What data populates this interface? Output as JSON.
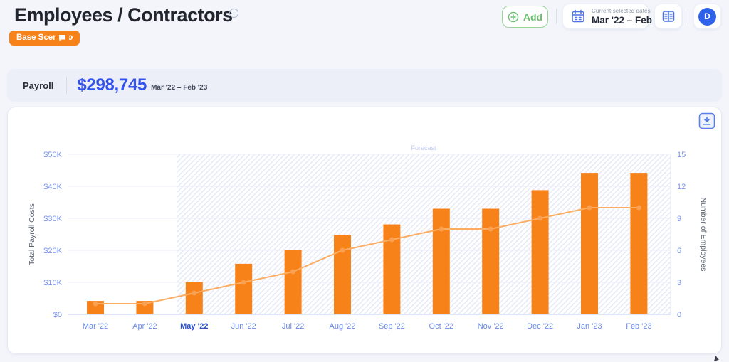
{
  "header": {
    "title": "Employees / Contractors",
    "info_icon": "info-circle",
    "scenario_badge": "Base Scenario",
    "comment_icon": "comment-bubble"
  },
  "toolbar": {
    "add_label": "Add",
    "add_icon": "plus-circle",
    "date_selector": {
      "icon": "calendar",
      "caption": "Current selected dates",
      "range": "Mar '22 – Feb '23"
    },
    "table_icon": "table",
    "avatar_initial": "D"
  },
  "summary": {
    "label": "Payroll",
    "amount": "$298,745",
    "period": "Mar '22 – Feb '23",
    "amount_color": "#3353EB"
  },
  "chart_card": {
    "download_icon": "download"
  },
  "chart_data": {
    "type": "bar",
    "categories": [
      "Mar '22",
      "Apr '22",
      "May '22",
      "Jun '22",
      "Jul '22",
      "Aug '22",
      "Sep '22",
      "Oct '22",
      "Nov '22",
      "Dec '22",
      "Jan '23",
      "Feb '23"
    ],
    "series": [
      {
        "name": "Total Payroll Costs",
        "type": "bar",
        "axis": "left",
        "values": [
          4200,
          4200,
          10000,
          15800,
          20000,
          24800,
          28100,
          33000,
          33000,
          38800,
          44200,
          44200
        ]
      },
      {
        "name": "Number of Employees",
        "type": "line",
        "axis": "right",
        "values": [
          1,
          1,
          2,
          3,
          4,
          6,
          7,
          8,
          8,
          9,
          10,
          10
        ]
      }
    ],
    "left_axis": {
      "label": "Total Payroll Costs",
      "min": 0,
      "max": 50000,
      "tick_values": [
        50000,
        40000,
        30000,
        20000,
        10000,
        0
      ],
      "tick_labels": [
        "$50K",
        "$40K",
        "$30K",
        "$20K",
        "$10K",
        "$0"
      ]
    },
    "right_axis": {
      "label": "Number of Employees",
      "min": 0,
      "max": 15,
      "tick_values": [
        15,
        12,
        9,
        6,
        3,
        0
      ],
      "tick_labels": [
        "15",
        "12",
        "9",
        "6",
        "3",
        "0"
      ]
    },
    "forecast": {
      "label": "Forecast",
      "start_category": "May '22"
    },
    "highlighted_category": "May '22",
    "grid": true,
    "legend": "none",
    "colors": {
      "bar": "#F8821A",
      "line": "#FBAE63",
      "dot": "#F9A052",
      "grid": "#EAEEF9",
      "baseline": "#C9D3F0",
      "hatch": "#E4E8F8",
      "hatch_edge": "#E0E6F5",
      "tick_text": "#7B93ED",
      "x_text": "#6C8BE8",
      "x_text_highlight": "#2D50D0",
      "axis_label_text": "#5A6170",
      "forecast_text": "#BFCAF2"
    }
  }
}
